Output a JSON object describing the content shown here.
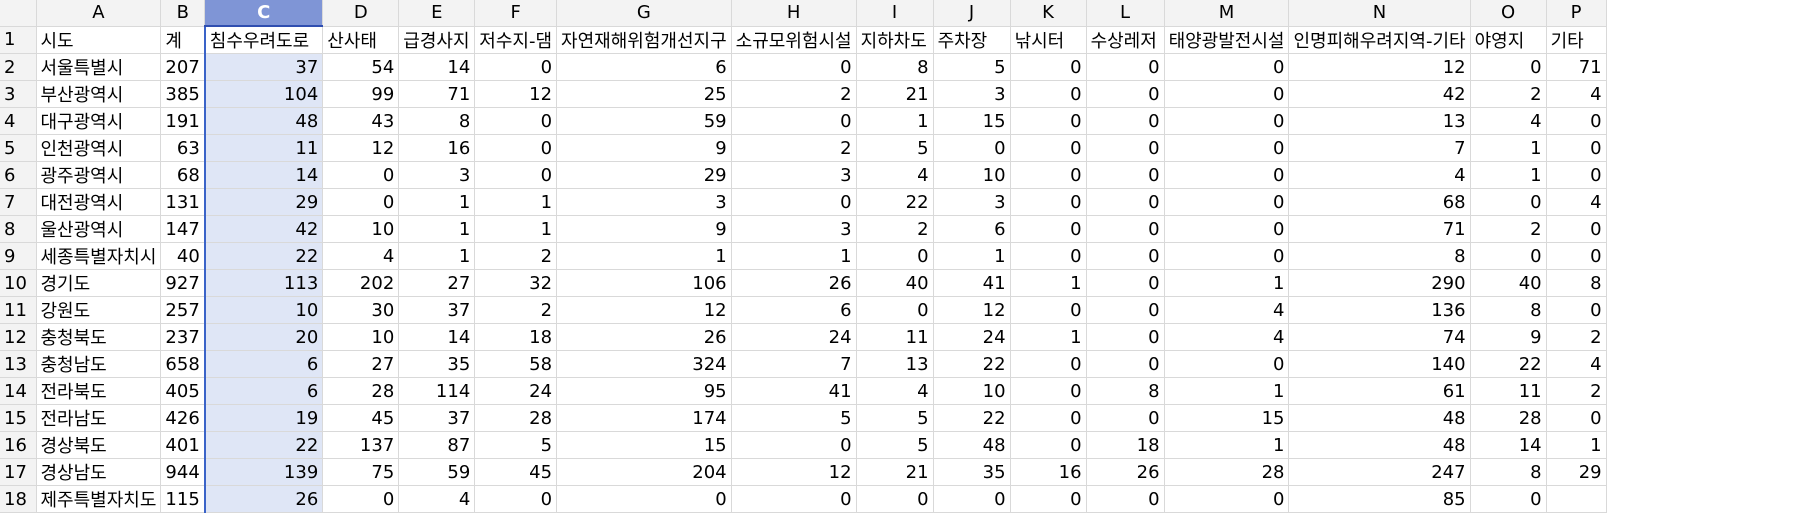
{
  "columns": [
    "A",
    "B",
    "C",
    "D",
    "E",
    "F",
    "G",
    "H",
    "I",
    "J",
    "K",
    "L",
    "M",
    "N",
    "O",
    "P"
  ],
  "selected_column": "C",
  "colors": {
    "selection_header": "#7f95d6",
    "selection_fill": "#dfe6f6",
    "selection_border": "#3a63c8",
    "row_number": "#2d55b5"
  },
  "rows": [
    {
      "n": "1",
      "cells": [
        "시도",
        "계",
        "침수우려도로",
        "산사태",
        "급경사지",
        "저수지-댐",
        "자연재해위험개선지구",
        "소규모위험시설",
        "지하차도",
        "주차장",
        "낚시터",
        "수상레저",
        "태양광발전시설",
        "인명피해우려지역-기타",
        "야영지",
        "기타"
      ]
    },
    {
      "n": "2",
      "cells": [
        "서울특별시",
        "207",
        "37",
        "54",
        "14",
        "0",
        "6",
        "0",
        "8",
        "5",
        "0",
        "0",
        "0",
        "12",
        "0",
        "71"
      ]
    },
    {
      "n": "3",
      "cells": [
        "부산광역시",
        "385",
        "104",
        "99",
        "71",
        "12",
        "25",
        "2",
        "21",
        "3",
        "0",
        "0",
        "0",
        "42",
        "2",
        "4"
      ]
    },
    {
      "n": "4",
      "cells": [
        "대구광역시",
        "191",
        "48",
        "43",
        "8",
        "0",
        "59",
        "0",
        "1",
        "15",
        "0",
        "0",
        "0",
        "13",
        "4",
        "0"
      ]
    },
    {
      "n": "5",
      "cells": [
        "인천광역시",
        "63",
        "11",
        "12",
        "16",
        "0",
        "9",
        "2",
        "5",
        "0",
        "0",
        "0",
        "0",
        "7",
        "1",
        "0"
      ]
    },
    {
      "n": "6",
      "cells": [
        "광주광역시",
        "68",
        "14",
        "0",
        "3",
        "0",
        "29",
        "3",
        "4",
        "10",
        "0",
        "0",
        "0",
        "4",
        "1",
        "0"
      ]
    },
    {
      "n": "7",
      "cells": [
        "대전광역시",
        "131",
        "29",
        "0",
        "1",
        "1",
        "3",
        "0",
        "22",
        "3",
        "0",
        "0",
        "0",
        "68",
        "0",
        "4"
      ]
    },
    {
      "n": "8",
      "cells": [
        "울산광역시",
        "147",
        "42",
        "10",
        "1",
        "1",
        "9",
        "3",
        "2",
        "6",
        "0",
        "0",
        "0",
        "71",
        "2",
        "0"
      ]
    },
    {
      "n": "9",
      "cells": [
        "세종특별자치시",
        "40",
        "22",
        "4",
        "1",
        "2",
        "1",
        "1",
        "0",
        "1",
        "0",
        "0",
        "0",
        "8",
        "0",
        "0"
      ]
    },
    {
      "n": "10",
      "cells": [
        "경기도",
        "927",
        "113",
        "202",
        "27",
        "32",
        "106",
        "26",
        "40",
        "41",
        "1",
        "0",
        "1",
        "290",
        "40",
        "8"
      ]
    },
    {
      "n": "11",
      "cells": [
        "강원도",
        "257",
        "10",
        "30",
        "37",
        "2",
        "12",
        "6",
        "0",
        "12",
        "0",
        "0",
        "4",
        "136",
        "8",
        "0"
      ]
    },
    {
      "n": "12",
      "cells": [
        "충청북도",
        "237",
        "20",
        "10",
        "14",
        "18",
        "26",
        "24",
        "11",
        "24",
        "1",
        "0",
        "4",
        "74",
        "9",
        "2"
      ]
    },
    {
      "n": "13",
      "cells": [
        "충청남도",
        "658",
        "6",
        "27",
        "35",
        "58",
        "324",
        "7",
        "13",
        "22",
        "0",
        "0",
        "0",
        "140",
        "22",
        "4"
      ]
    },
    {
      "n": "14",
      "cells": [
        "전라북도",
        "405",
        "6",
        "28",
        "114",
        "24",
        "95",
        "41",
        "4",
        "10",
        "0",
        "8",
        "1",
        "61",
        "11",
        "2"
      ]
    },
    {
      "n": "15",
      "cells": [
        "전라남도",
        "426",
        "19",
        "45",
        "37",
        "28",
        "174",
        "5",
        "5",
        "22",
        "0",
        "0",
        "15",
        "48",
        "28",
        "0"
      ]
    },
    {
      "n": "16",
      "cells": [
        "경상북도",
        "401",
        "22",
        "137",
        "87",
        "5",
        "15",
        "0",
        "5",
        "48",
        "0",
        "18",
        "1",
        "48",
        "14",
        "1"
      ]
    },
    {
      "n": "17",
      "cells": [
        "경상남도",
        "944",
        "139",
        "75",
        "59",
        "45",
        "204",
        "12",
        "21",
        "35",
        "16",
        "26",
        "28",
        "247",
        "8",
        "29"
      ]
    },
    {
      "n": "18",
      "cells": [
        "제주특별자치도",
        "115",
        "26",
        "0",
        "4",
        "0",
        "0",
        "0",
        "0",
        "0",
        "0",
        "0",
        "0",
        "85",
        "0",
        ""
      ]
    }
  ]
}
